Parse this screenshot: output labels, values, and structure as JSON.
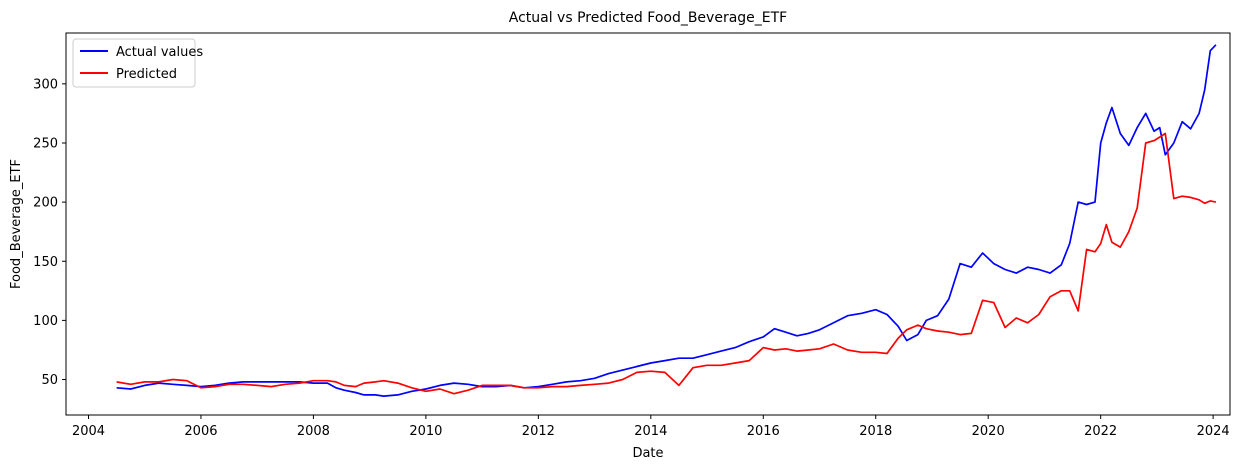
{
  "chart_data": {
    "type": "line",
    "title": "Actual vs Predicted Food_Beverage_ETF",
    "xlabel": "Date",
    "ylabel": "Food_Beverage_ETF",
    "xlim": [
      2003.6,
      2024.3
    ],
    "ylim": [
      20,
      343
    ],
    "x_ticks": [
      2004,
      2006,
      2008,
      2010,
      2012,
      2014,
      2016,
      2018,
      2020,
      2022,
      2024
    ],
    "y_ticks": [
      50,
      100,
      150,
      200,
      250,
      300
    ],
    "grid": false,
    "legend_position": "upper-left",
    "series": [
      {
        "name": "Actual values",
        "color": "#0000ff",
        "points": [
          [
            2004.5,
            43
          ],
          [
            2004.75,
            42
          ],
          [
            2005.0,
            45
          ],
          [
            2005.25,
            47
          ],
          [
            2005.5,
            46
          ],
          [
            2005.75,
            45
          ],
          [
            2006.0,
            44
          ],
          [
            2006.25,
            45
          ],
          [
            2006.5,
            47
          ],
          [
            2006.75,
            48
          ],
          [
            2007.0,
            48
          ],
          [
            2007.25,
            48
          ],
          [
            2007.5,
            48
          ],
          [
            2007.75,
            48
          ],
          [
            2008.0,
            47
          ],
          [
            2008.25,
            47
          ],
          [
            2008.4,
            43
          ],
          [
            2008.55,
            41
          ],
          [
            2008.75,
            39
          ],
          [
            2008.9,
            37
          ],
          [
            2009.1,
            37
          ],
          [
            2009.25,
            36
          ],
          [
            2009.5,
            37
          ],
          [
            2009.75,
            40
          ],
          [
            2010.0,
            42
          ],
          [
            2010.25,
            45
          ],
          [
            2010.5,
            47
          ],
          [
            2010.75,
            46
          ],
          [
            2011.0,
            44
          ],
          [
            2011.25,
            44
          ],
          [
            2011.5,
            45
          ],
          [
            2011.75,
            43
          ],
          [
            2012.0,
            44
          ],
          [
            2012.25,
            46
          ],
          [
            2012.5,
            48
          ],
          [
            2012.75,
            49
          ],
          [
            2013.0,
            51
          ],
          [
            2013.25,
            55
          ],
          [
            2013.5,
            58
          ],
          [
            2013.75,
            61
          ],
          [
            2014.0,
            64
          ],
          [
            2014.25,
            66
          ],
          [
            2014.5,
            68
          ],
          [
            2014.75,
            68
          ],
          [
            2015.0,
            71
          ],
          [
            2015.25,
            74
          ],
          [
            2015.5,
            77
          ],
          [
            2015.75,
            82
          ],
          [
            2016.0,
            86
          ],
          [
            2016.2,
            93
          ],
          [
            2016.4,
            90
          ],
          [
            2016.6,
            87
          ],
          [
            2016.8,
            89
          ],
          [
            2017.0,
            92
          ],
          [
            2017.25,
            98
          ],
          [
            2017.5,
            104
          ],
          [
            2017.75,
            106
          ],
          [
            2018.0,
            109
          ],
          [
            2018.2,
            105
          ],
          [
            2018.4,
            95
          ],
          [
            2018.55,
            83
          ],
          [
            2018.75,
            88
          ],
          [
            2018.9,
            100
          ],
          [
            2019.1,
            104
          ],
          [
            2019.3,
            118
          ],
          [
            2019.5,
            148
          ],
          [
            2019.7,
            145
          ],
          [
            2019.9,
            157
          ],
          [
            2020.1,
            148
          ],
          [
            2020.3,
            143
          ],
          [
            2020.5,
            140
          ],
          [
            2020.7,
            145
          ],
          [
            2020.9,
            143
          ],
          [
            2021.1,
            140
          ],
          [
            2021.3,
            147
          ],
          [
            2021.45,
            165
          ],
          [
            2021.6,
            200
          ],
          [
            2021.75,
            198
          ],
          [
            2021.9,
            200
          ],
          [
            2022.0,
            250
          ],
          [
            2022.1,
            267
          ],
          [
            2022.2,
            280
          ],
          [
            2022.35,
            258
          ],
          [
            2022.5,
            248
          ],
          [
            2022.65,
            263
          ],
          [
            2022.8,
            275
          ],
          [
            2022.95,
            260
          ],
          [
            2023.05,
            263
          ],
          [
            2023.15,
            240
          ],
          [
            2023.3,
            250
          ],
          [
            2023.45,
            268
          ],
          [
            2023.6,
            262
          ],
          [
            2023.75,
            275
          ],
          [
            2023.85,
            295
          ],
          [
            2023.95,
            328
          ],
          [
            2024.05,
            333
          ]
        ]
      },
      {
        "name": "Predicted",
        "color": "#ff0000",
        "points": [
          [
            2004.5,
            48
          ],
          [
            2004.75,
            46
          ],
          [
            2005.0,
            48
          ],
          [
            2005.25,
            48
          ],
          [
            2005.5,
            50
          ],
          [
            2005.75,
            49
          ],
          [
            2006.0,
            43
          ],
          [
            2006.25,
            44
          ],
          [
            2006.5,
            46
          ],
          [
            2006.75,
            46
          ],
          [
            2007.0,
            45
          ],
          [
            2007.25,
            44
          ],
          [
            2007.5,
            46
          ],
          [
            2007.75,
            47
          ],
          [
            2008.0,
            49
          ],
          [
            2008.25,
            49
          ],
          [
            2008.4,
            48
          ],
          [
            2008.55,
            45
          ],
          [
            2008.75,
            44
          ],
          [
            2008.9,
            47
          ],
          [
            2009.1,
            48
          ],
          [
            2009.25,
            49
          ],
          [
            2009.5,
            47
          ],
          [
            2009.75,
            43
          ],
          [
            2010.0,
            40
          ],
          [
            2010.25,
            42
          ],
          [
            2010.5,
            38
          ],
          [
            2010.75,
            41
          ],
          [
            2011.0,
            45
          ],
          [
            2011.25,
            45
          ],
          [
            2011.5,
            45
          ],
          [
            2011.75,
            43
          ],
          [
            2012.0,
            43
          ],
          [
            2012.25,
            44
          ],
          [
            2012.5,
            44
          ],
          [
            2012.75,
            45
          ],
          [
            2013.0,
            46
          ],
          [
            2013.25,
            47
          ],
          [
            2013.5,
            50
          ],
          [
            2013.75,
            56
          ],
          [
            2014.0,
            57
          ],
          [
            2014.25,
            56
          ],
          [
            2014.5,
            45
          ],
          [
            2014.75,
            60
          ],
          [
            2015.0,
            62
          ],
          [
            2015.25,
            62
          ],
          [
            2015.5,
            64
          ],
          [
            2015.75,
            66
          ],
          [
            2016.0,
            77
          ],
          [
            2016.2,
            75
          ],
          [
            2016.4,
            76
          ],
          [
            2016.6,
            74
          ],
          [
            2016.8,
            75
          ],
          [
            2017.0,
            76
          ],
          [
            2017.25,
            80
          ],
          [
            2017.5,
            75
          ],
          [
            2017.75,
            73
          ],
          [
            2018.0,
            73
          ],
          [
            2018.2,
            72
          ],
          [
            2018.4,
            85
          ],
          [
            2018.55,
            92
          ],
          [
            2018.75,
            96
          ],
          [
            2018.9,
            93
          ],
          [
            2019.1,
            91
          ],
          [
            2019.3,
            90
          ],
          [
            2019.5,
            88
          ],
          [
            2019.7,
            89
          ],
          [
            2019.9,
            117
          ],
          [
            2020.1,
            115
          ],
          [
            2020.3,
            94
          ],
          [
            2020.5,
            102
          ],
          [
            2020.7,
            98
          ],
          [
            2020.9,
            105
          ],
          [
            2021.1,
            120
          ],
          [
            2021.3,
            125
          ],
          [
            2021.45,
            125
          ],
          [
            2021.6,
            108
          ],
          [
            2021.75,
            160
          ],
          [
            2021.9,
            158
          ],
          [
            2022.0,
            165
          ],
          [
            2022.1,
            181
          ],
          [
            2022.2,
            166
          ],
          [
            2022.35,
            162
          ],
          [
            2022.5,
            175
          ],
          [
            2022.65,
            195
          ],
          [
            2022.8,
            250
          ],
          [
            2022.95,
            252
          ],
          [
            2023.05,
            255
          ],
          [
            2023.15,
            258
          ],
          [
            2023.3,
            203
          ],
          [
            2023.45,
            205
          ],
          [
            2023.6,
            204
          ],
          [
            2023.75,
            202
          ],
          [
            2023.85,
            199
          ],
          [
            2023.95,
            201
          ],
          [
            2024.05,
            200
          ]
        ]
      }
    ]
  }
}
